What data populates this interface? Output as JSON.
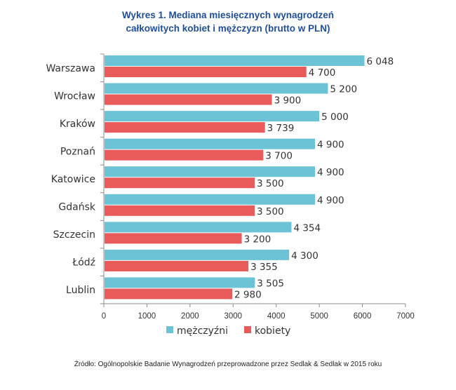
{
  "chart_data": {
    "type": "bar",
    "orientation": "horizontal",
    "title_line1": "Wykres 1. Mediana miesięcznych wynagrodzeń",
    "title_line2": "całkowitych kobiet i mężczyzn (brutto w PLN)",
    "categories": [
      "Warszawa",
      "Wrocław",
      "Kraków",
      "Poznań",
      "Katowice",
      "Gdańsk",
      "Szczecin",
      "Łódź",
      "Lublin"
    ],
    "series": [
      {
        "name": "mężczyźni",
        "color": "#6cc3d6",
        "values": [
          6048,
          5200,
          5000,
          4900,
          4900,
          4900,
          4354,
          4300,
          3505
        ],
        "labels": [
          "6 048",
          "5 200",
          "5 000",
          "4 900",
          "4 900",
          "4 900",
          "4 354",
          "4 300",
          "3 505"
        ]
      },
      {
        "name": "kobiety",
        "color": "#e95a5a",
        "values": [
          4700,
          3900,
          3739,
          3700,
          3500,
          3500,
          3200,
          3355,
          2980
        ],
        "labels": [
          "4 700",
          "3 900",
          "3 739",
          "3 700",
          "3 500",
          "3 500",
          "3 200",
          "3 355",
          "2 980"
        ]
      }
    ],
    "xlim": [
      0,
      7000
    ],
    "xticks": [
      0,
      1000,
      2000,
      3000,
      4000,
      5000,
      6000,
      7000
    ],
    "grid": false,
    "legend": "bottom"
  },
  "source_text": "Źródło: Ogólnopolskie Badanie Wynagrodzeń przeprowadzone przez Sedlak & Sedlak w 2015 roku"
}
